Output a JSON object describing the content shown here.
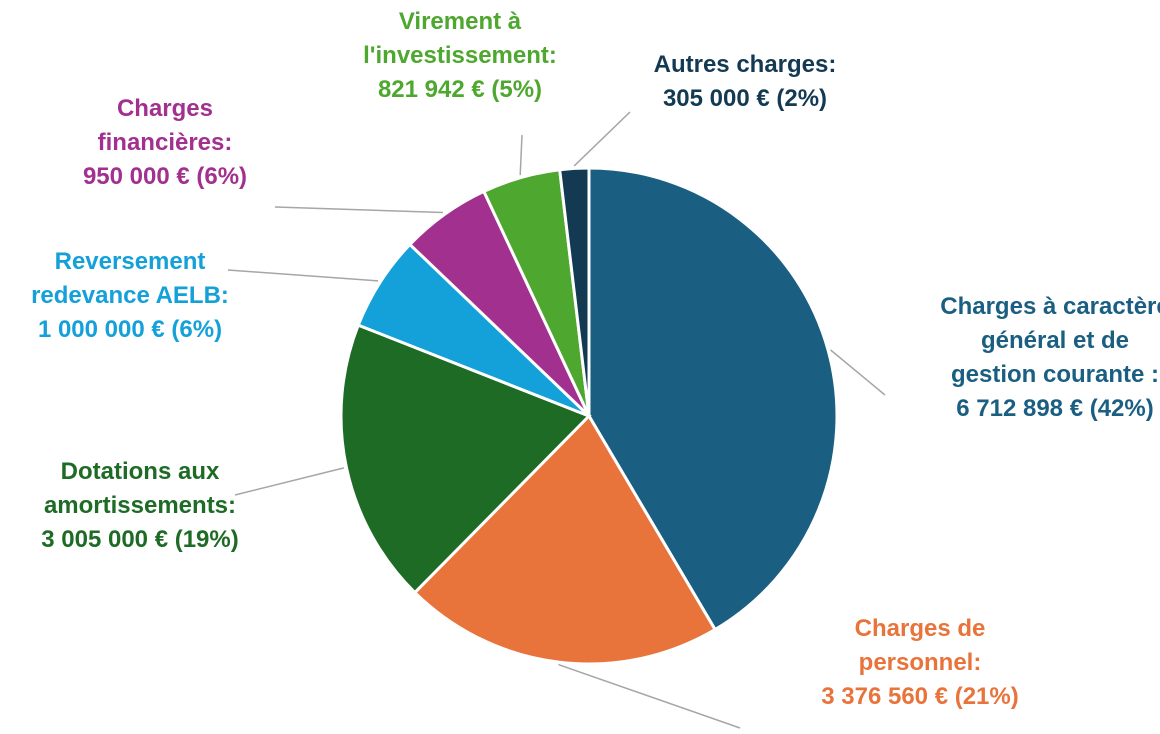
{
  "chart_data": {
    "type": "pie",
    "categories": [
      "Charges à caractère général et de gestion courante :",
      "Charges de personnel:",
      "Dotations aux amortissements:",
      "Reversement redevance AELB:",
      "Charges financières:",
      "Virement à l'investissement:",
      "Autres charges:"
    ],
    "values": [
      6712898,
      3376560,
      3005000,
      1000000,
      950000,
      821942,
      305000
    ],
    "value_labels": [
      "6 712 898 € (42%)",
      "3 376 560 € (21%)",
      "3 005 000 € (19%)",
      "1 000 000 € (6%)",
      "950 000 € (6%)",
      "821 942 € (5%)",
      "305 000 € (2%)"
    ],
    "colors": [
      "#1a5f82",
      "#e8743b",
      "#1e6b26",
      "#14a0d8",
      "#a2308f",
      "#4ea72e",
      "#133a52"
    ]
  }
}
